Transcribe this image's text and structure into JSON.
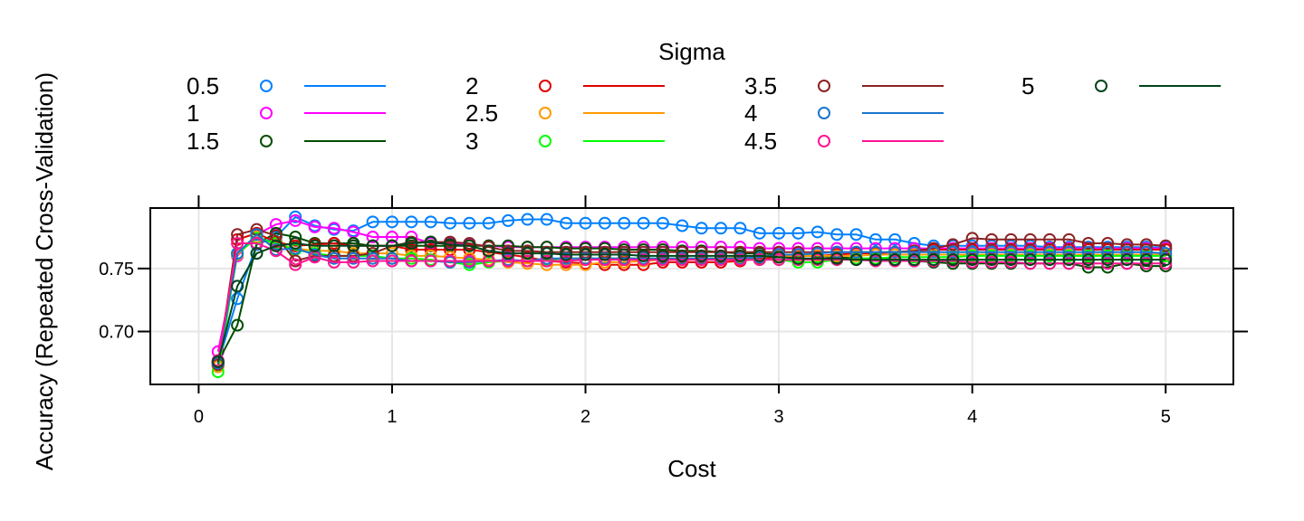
{
  "chart_data": {
    "type": "line",
    "xlabel": "Cost",
    "ylabel": "Accuracy (Repeated Cross-Validation)",
    "legend_title": "Sigma",
    "legend_position": "top",
    "grid": true,
    "xlim": [
      -0.25,
      5.35
    ],
    "ylim": [
      0.658,
      0.798
    ],
    "x_ticks": [
      0,
      1,
      2,
      3,
      4,
      5
    ],
    "y_ticks": [
      0.7,
      0.75
    ],
    "y_tick_labels": [
      "0.70",
      "0.75"
    ],
    "x": [
      0.1,
      0.2,
      0.3,
      0.4,
      0.5,
      0.6,
      0.7,
      0.8,
      0.9,
      1.0,
      1.1,
      1.2,
      1.3,
      1.4,
      1.5,
      1.6,
      1.7,
      1.8,
      1.9,
      2.0,
      2.1,
      2.2,
      2.3,
      2.4,
      2.5,
      2.6,
      2.7,
      2.8,
      2.9,
      3.0,
      3.1,
      3.2,
      3.3,
      3.4,
      3.5,
      3.6,
      3.7,
      3.8,
      3.9,
      4.0,
      4.1,
      4.2,
      4.3,
      4.4,
      4.5,
      4.6,
      4.7,
      4.8,
      4.9,
      5.0
    ],
    "series": [
      {
        "name": "0.5",
        "color": "#0080ff",
        "values": [
          0.675,
          0.726,
          0.769,
          0.775,
          0.791,
          0.784,
          0.781,
          0.78,
          0.787,
          0.787,
          0.787,
          0.787,
          0.786,
          0.786,
          0.786,
          0.788,
          0.789,
          0.789,
          0.786,
          0.786,
          0.786,
          0.786,
          0.786,
          0.786,
          0.784,
          0.782,
          0.782,
          0.782,
          0.778,
          0.778,
          0.778,
          0.779,
          0.777,
          0.777,
          0.773,
          0.773,
          0.77,
          0.768,
          0.768,
          0.768,
          0.768,
          0.768,
          0.768,
          0.767,
          0.767,
          0.767,
          0.767,
          0.767,
          0.767,
          0.767
        ]
      },
      {
        "name": "1",
        "color": "#ff00ff",
        "values": [
          0.684,
          0.76,
          0.777,
          0.785,
          0.788,
          0.783,
          0.782,
          0.779,
          0.775,
          0.775,
          0.775,
          0.77,
          0.77,
          0.769,
          0.768,
          0.767,
          0.767,
          0.767,
          0.767,
          0.767,
          0.767,
          0.767,
          0.767,
          0.767,
          0.767,
          0.767,
          0.767,
          0.767,
          0.766,
          0.766,
          0.766,
          0.766,
          0.766,
          0.766,
          0.766,
          0.766,
          0.766,
          0.766,
          0.766,
          0.766,
          0.766,
          0.766,
          0.766,
          0.766,
          0.766,
          0.766,
          0.766,
          0.766,
          0.766,
          0.766
        ]
      },
      {
        "name": "1.5",
        "color": "#004d00",
        "values": [
          0.676,
          0.705,
          0.77,
          0.778,
          0.775,
          0.77,
          0.77,
          0.77,
          0.768,
          0.768,
          0.768,
          0.768,
          0.768,
          0.768,
          0.768,
          0.768,
          0.767,
          0.767,
          0.766,
          0.766,
          0.766,
          0.765,
          0.765,
          0.765,
          0.764,
          0.764,
          0.763,
          0.762,
          0.762,
          0.761,
          0.76,
          0.76,
          0.759,
          0.758,
          0.758,
          0.757,
          0.756,
          0.755,
          0.754,
          0.754,
          0.754,
          0.754,
          0.754,
          0.754,
          0.754,
          0.751,
          0.751,
          0.754,
          0.752,
          0.752
        ]
      },
      {
        "name": "2",
        "color": "#e00000",
        "values": [
          0.673,
          0.773,
          0.778,
          0.771,
          0.768,
          0.769,
          0.77,
          0.768,
          0.768,
          0.768,
          0.765,
          0.765,
          0.765,
          0.765,
          0.763,
          0.761,
          0.759,
          0.756,
          0.755,
          0.754,
          0.753,
          0.753,
          0.753,
          0.755,
          0.755,
          0.755,
          0.755,
          0.756,
          0.758,
          0.759,
          0.76,
          0.76,
          0.761,
          0.762,
          0.762,
          0.763,
          0.764,
          0.765,
          0.765,
          0.765,
          0.765,
          0.765,
          0.765,
          0.765,
          0.765,
          0.765,
          0.765,
          0.765,
          0.765,
          0.765
        ]
      },
      {
        "name": "2.5",
        "color": "#ff9900",
        "values": [
          0.672,
          0.761,
          0.775,
          0.769,
          0.766,
          0.764,
          0.764,
          0.762,
          0.762,
          0.762,
          0.76,
          0.76,
          0.759,
          0.758,
          0.757,
          0.755,
          0.754,
          0.753,
          0.753,
          0.753,
          0.755,
          0.755,
          0.756,
          0.757,
          0.757,
          0.758,
          0.758,
          0.759,
          0.759,
          0.76,
          0.76,
          0.76,
          0.76,
          0.76,
          0.761,
          0.761,
          0.761,
          0.761,
          0.761,
          0.761,
          0.761,
          0.761,
          0.761,
          0.761,
          0.761,
          0.761,
          0.761,
          0.761,
          0.761,
          0.761
        ]
      },
      {
        "name": "3",
        "color": "#00ff00",
        "values": [
          0.668,
          0.762,
          0.774,
          0.77,
          0.765,
          0.762,
          0.76,
          0.76,
          0.76,
          0.758,
          0.758,
          0.757,
          0.755,
          0.753,
          0.755,
          0.756,
          0.756,
          0.757,
          0.758,
          0.758,
          0.758,
          0.758,
          0.758,
          0.758,
          0.758,
          0.758,
          0.758,
          0.758,
          0.757,
          0.757,
          0.755,
          0.755,
          0.757,
          0.758,
          0.758,
          0.759,
          0.759,
          0.759,
          0.759,
          0.76,
          0.76,
          0.76,
          0.76,
          0.76,
          0.76,
          0.76,
          0.76,
          0.76,
          0.76,
          0.76
        ]
      },
      {
        "name": "3.5",
        "color": "#8b2323",
        "values": [
          0.674,
          0.777,
          0.781,
          0.776,
          0.756,
          0.76,
          0.76,
          0.76,
          0.762,
          0.768,
          0.771,
          0.771,
          0.771,
          0.77,
          0.767,
          0.764,
          0.764,
          0.763,
          0.763,
          0.763,
          0.763,
          0.763,
          0.763,
          0.763,
          0.763,
          0.763,
          0.763,
          0.763,
          0.763,
          0.763,
          0.763,
          0.763,
          0.763,
          0.763,
          0.763,
          0.763,
          0.764,
          0.766,
          0.769,
          0.774,
          0.773,
          0.773,
          0.773,
          0.773,
          0.773,
          0.77,
          0.77,
          0.769,
          0.769,
          0.768
        ]
      },
      {
        "name": "4",
        "color": "#1874cd",
        "values": [
          0.675,
          0.762,
          0.777,
          0.765,
          0.766,
          0.761,
          0.758,
          0.758,
          0.758,
          0.758,
          0.756,
          0.756,
          0.755,
          0.755,
          0.756,
          0.757,
          0.756,
          0.758,
          0.758,
          0.758,
          0.758,
          0.758,
          0.758,
          0.758,
          0.758,
          0.758,
          0.758,
          0.758,
          0.759,
          0.761,
          0.761,
          0.762,
          0.763,
          0.763,
          0.763,
          0.763,
          0.763,
          0.763,
          0.763,
          0.763,
          0.763,
          0.763,
          0.763,
          0.763,
          0.763,
          0.763,
          0.763,
          0.763,
          0.763,
          0.762
        ]
      },
      {
        "name": "4.5",
        "color": "#ff1493",
        "values": [
          0.677,
          0.77,
          0.77,
          0.764,
          0.753,
          0.759,
          0.755,
          0.755,
          0.756,
          0.756,
          0.756,
          0.756,
          0.756,
          0.756,
          0.756,
          0.756,
          0.756,
          0.756,
          0.756,
          0.757,
          0.757,
          0.757,
          0.757,
          0.757,
          0.757,
          0.757,
          0.757,
          0.757,
          0.757,
          0.757,
          0.757,
          0.757,
          0.757,
          0.757,
          0.756,
          0.756,
          0.756,
          0.756,
          0.756,
          0.755,
          0.755,
          0.755,
          0.754,
          0.754,
          0.754,
          0.754,
          0.754,
          0.754,
          0.754,
          0.754
        ]
      },
      {
        "name": "5",
        "color": "#00441b",
        "values": [
          0.676,
          0.736,
          0.762,
          0.768,
          0.77,
          0.768,
          0.768,
          0.768,
          0.768,
          0.768,
          0.77,
          0.771,
          0.769,
          0.768,
          0.764,
          0.762,
          0.762,
          0.762,
          0.761,
          0.761,
          0.761,
          0.761,
          0.76,
          0.76,
          0.76,
          0.76,
          0.76,
          0.76,
          0.76,
          0.759,
          0.758,
          0.758,
          0.758,
          0.757,
          0.757,
          0.757,
          0.757,
          0.757,
          0.757,
          0.757,
          0.757,
          0.757,
          0.757,
          0.757,
          0.757,
          0.757,
          0.757,
          0.757,
          0.757,
          0.757
        ]
      }
    ]
  }
}
